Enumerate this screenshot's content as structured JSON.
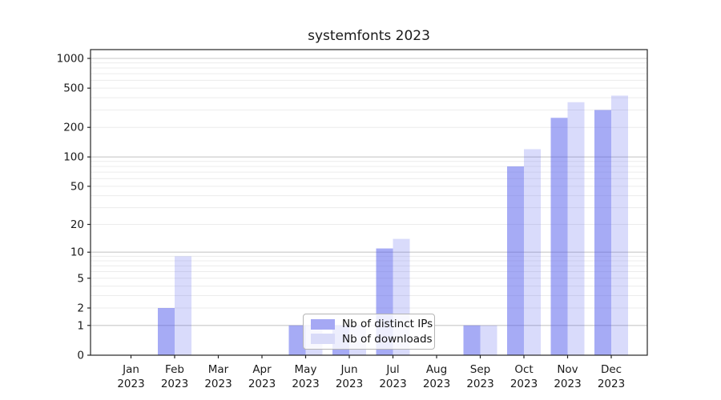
{
  "chart_data": {
    "type": "bar",
    "title": "systemfonts 2023",
    "year_label": "2023",
    "categories": [
      "Jan",
      "Feb",
      "Mar",
      "Apr",
      "May",
      "Jun",
      "Jul",
      "Aug",
      "Sep",
      "Oct",
      "Nov",
      "Dec"
    ],
    "series": [
      {
        "name": "Nb of distinct IPs",
        "values": [
          0,
          2,
          0,
          0,
          1,
          1,
          11,
          0,
          1,
          80,
          250,
          300
        ],
        "color_base": "#505aeb",
        "alpha": 0.51,
        "display_color": "#a5a8f4"
      },
      {
        "name": "Nb of downloads",
        "values": [
          0,
          9,
          0,
          0,
          1,
          1,
          14,
          0,
          1,
          120,
          360,
          420
        ],
        "color_base": "#505aeb",
        "alpha": 0.22,
        "display_color": "#d9dbf8"
      }
    ],
    "xlabel": "",
    "ylabel": "",
    "yscale": "log1p",
    "yticks": [
      0,
      1,
      2,
      5,
      10,
      20,
      50,
      100,
      200,
      500,
      1000
    ],
    "major_gridlines": [
      1,
      10,
      100,
      1000
    ],
    "minor_gridlines": [
      3,
      4,
      6,
      7,
      8,
      9,
      30,
      40,
      60,
      70,
      80,
      90,
      300,
      400,
      600,
      700,
      800,
      900
    ],
    "ylim": [
      0,
      1228
    ],
    "grid": true,
    "legend_position": "lower center",
    "colors": {
      "grid_major": "#c8c8c8",
      "grid_minor": "#ececec",
      "axis": "#262626",
      "tick_text": "#1a1a1a"
    }
  }
}
